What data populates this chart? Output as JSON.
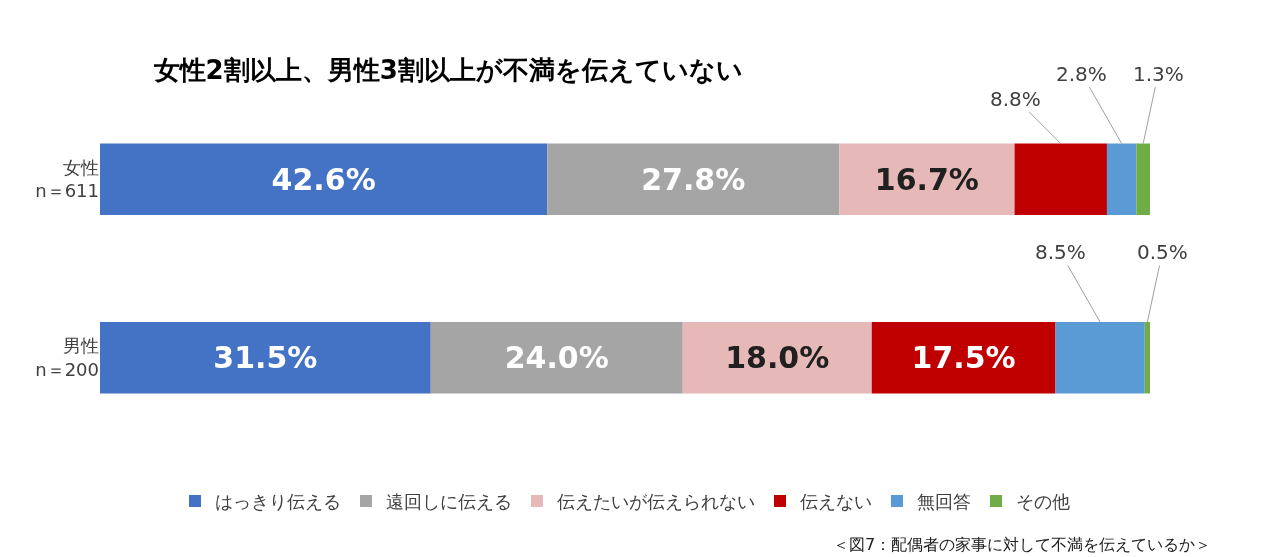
{
  "chart_data": {
    "type": "bar",
    "orientation": "horizontal",
    "stacked": true,
    "title": "女性2割以上、男性3割以上が不満を伝えていない",
    "categories": [
      "女性\nn＝611",
      "男性\nn＝200"
    ],
    "series": [
      {
        "name": "はっきり伝える",
        "color": "#4472c4",
        "values": [
          42.6,
          31.5
        ],
        "value_labels": [
          "42.6%",
          "31.5%"
        ]
      },
      {
        "name": "遠回しに伝える",
        "color": "#a5a5a5",
        "values": [
          27.8,
          24.0
        ],
        "value_labels": [
          "27.8%",
          "24.0%"
        ]
      },
      {
        "name": "伝えたいが伝えられない",
        "color": "#e6b9b8",
        "values": [
          16.7,
          18.0
        ],
        "value_labels": [
          "16.7%",
          "18.0%"
        ]
      },
      {
        "name": "伝えない",
        "color": "#c00000",
        "values": [
          8.8,
          17.5
        ],
        "value_labels": [
          "8.8%",
          "17.5%"
        ]
      },
      {
        "name": "無回答",
        "color": "#5b9bd5",
        "values": [
          2.8,
          8.5
        ],
        "value_labels": [
          "2.8%",
          "8.5%"
        ]
      },
      {
        "name": "その他",
        "color": "#70ad47",
        "values": [
          1.3,
          0.5
        ],
        "value_labels": [
          "1.3%",
          "0.5%"
        ]
      }
    ],
    "legend": "bottom",
    "tick_labels": "y",
    "annotations": [
      "＜図7：配偶者の家事に対して不満を伝えているか＞"
    ]
  }
}
